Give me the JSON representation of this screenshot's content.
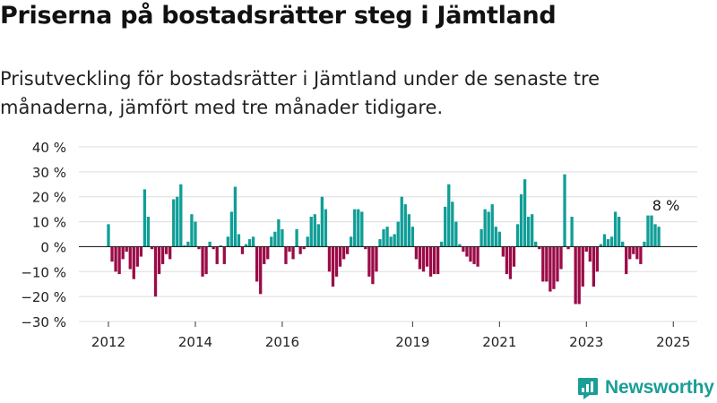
{
  "title": "Priserna på bostadsrätter steg i Jämtland",
  "subtitle": "Prisutveckling för bostadsrätter i Jämtland under de senaste tre månaderna, jämfört med tre månader tidigare.",
  "brand": {
    "name": "Newsworthy",
    "color": "#1a9e96"
  },
  "colors": {
    "positive": "#0f9e97",
    "negative": "#9b0b47",
    "grid": "#dddddd",
    "zero": "#222222"
  },
  "chart_data": {
    "type": "bar",
    "x_start": "2012-01",
    "frequency": "monthly",
    "ylim": [
      -30,
      40
    ],
    "y_ticks": [
      -30,
      -20,
      -10,
      0,
      10,
      20,
      30,
      40
    ],
    "y_tick_labels": [
      "−30 %",
      "−20 %",
      "−10 %",
      "0 %",
      "10 %",
      "20 %",
      "30 %",
      "40 %"
    ],
    "x_ticks": [
      "2012-01",
      "2014-01",
      "2016-01",
      "2019-01",
      "2021-01",
      "2023-01",
      "2025-01"
    ],
    "x_tick_labels": [
      "2012",
      "2014",
      "2016",
      "2019",
      "2021",
      "2023",
      "2025"
    ],
    "values": [
      9,
      -6,
      -10,
      -11,
      -5,
      -2,
      -9,
      -13,
      -8,
      -4,
      23,
      12,
      -1,
      -20,
      -11,
      -7,
      -3,
      -5,
      19,
      20,
      25,
      0.5,
      2,
      13,
      10,
      -1,
      -12,
      -11,
      2,
      -1,
      -7,
      0.5,
      -7,
      4,
      14,
      24,
      5,
      -3,
      1,
      3,
      4,
      -14,
      -19,
      -7,
      -5,
      4,
      6,
      11,
      7,
      -7,
      -2,
      -5,
      7,
      -3,
      -1,
      4,
      12,
      13,
      9,
      20,
      15,
      -10,
      -16,
      -12,
      -8,
      -5,
      -3,
      4,
      15,
      15,
      14,
      -1,
      -12,
      -15,
      -10,
      3,
      7,
      8,
      4,
      5,
      10,
      20,
      17,
      13,
      8,
      -5,
      -9,
      -10,
      -8,
      -12,
      -11,
      -11,
      2,
      16,
      25,
      18,
      10,
      1,
      -2,
      -4,
      -6,
      -7,
      -8,
      7,
      15,
      14,
      17,
      8,
      6,
      -4,
      -11,
      -13,
      -8,
      9,
      21,
      27,
      12,
      13,
      2,
      -1,
      -14,
      -14,
      -18,
      -17,
      -14,
      -9,
      29,
      -1,
      12,
      -23,
      -23,
      -16,
      -2,
      -6,
      -16,
      -10,
      1,
      5,
      3,
      4,
      14,
      12,
      2,
      -11,
      -5,
      -3,
      -5,
      -7,
      2,
      12.5,
      12.5,
      9,
      8
    ],
    "annotation": {
      "text": "8 %",
      "index": "last"
    }
  }
}
